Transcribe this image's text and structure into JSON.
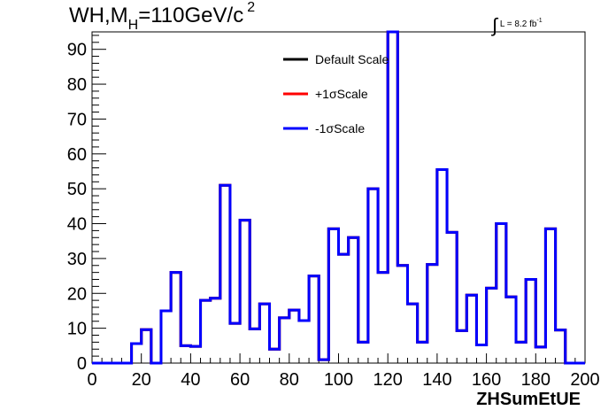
{
  "title": {
    "main": "WH,M",
    "sub": "H",
    "rest": "=110GeV/c",
    "sup": "2"
  },
  "lumi": {
    "integral": "∫",
    "text": "L = 8.2 fb",
    "sup": "-1"
  },
  "chart_data": {
    "type": "line",
    "step": true,
    "xlabel": "ZHSumEtUE",
    "ylabel": "",
    "xlim": [
      0,
      200
    ],
    "ylim": [
      0,
      95
    ],
    "xticks": [
      0,
      20,
      40,
      60,
      80,
      100,
      120,
      140,
      160,
      180,
      200
    ],
    "yticks": [
      0,
      10,
      20,
      30,
      40,
      50,
      60,
      70,
      80,
      90
    ],
    "bin_edges": [
      0,
      4,
      8,
      12,
      16,
      20,
      24,
      28,
      32,
      36,
      40,
      44,
      48,
      52,
      56,
      60,
      64,
      68,
      72,
      76,
      80,
      84,
      88,
      92,
      96,
      100,
      104,
      108,
      112,
      116,
      120,
      124,
      128,
      132,
      136,
      140,
      144,
      148,
      152,
      156,
      160,
      164,
      168,
      172,
      176,
      180,
      184,
      188,
      192,
      196,
      200
    ],
    "series": [
      {
        "name": "Default Scale",
        "color": "#000000",
        "values": [
          0,
          0,
          0,
          0,
          5.6,
          9.6,
          0,
          15,
          26,
          5,
          4.8,
          18,
          18.6,
          51,
          11.4,
          41,
          9.8,
          17,
          4,
          13,
          15.2,
          12.2,
          25,
          1,
          38.5,
          31.2,
          36,
          6,
          50,
          26,
          95,
          28,
          17,
          6,
          28.3,
          55.5,
          37.5,
          9.3,
          19.5,
          5.2,
          21.5,
          40,
          19,
          6,
          24,
          4.6,
          38.5,
          9.5,
          0,
          0
        ]
      },
      {
        "name": "+1σScale",
        "color": "#ff0000",
        "values": [
          0,
          0,
          0,
          0,
          5.6,
          9.6,
          0,
          15,
          26,
          5,
          4.8,
          18,
          18.6,
          51,
          11.4,
          41,
          9.8,
          17,
          4,
          13,
          15.2,
          12.2,
          25,
          1,
          38.5,
          31.2,
          36,
          6,
          50,
          26,
          95,
          28,
          17,
          6,
          28.3,
          55.5,
          37.5,
          9.3,
          19.5,
          5.2,
          21.5,
          40,
          19,
          6,
          24,
          4.6,
          38.5,
          9.5,
          0,
          0
        ]
      },
      {
        "name": "-1σScale",
        "color": "#0000ff",
        "values": [
          0,
          0,
          0,
          0,
          5.6,
          9.6,
          0,
          15,
          26,
          5,
          4.8,
          18,
          18.6,
          51,
          11.4,
          41,
          9.8,
          17,
          4,
          13,
          15.2,
          12.2,
          25,
          1,
          38.5,
          31.2,
          36,
          6,
          50,
          26,
          95,
          28,
          17,
          6,
          28.3,
          55.5,
          37.5,
          9.3,
          19.5,
          5.2,
          21.5,
          40,
          19,
          6,
          24,
          4.6,
          38.5,
          9.5,
          0,
          0
        ]
      }
    ],
    "legend_position": "top-center",
    "grid": false
  }
}
